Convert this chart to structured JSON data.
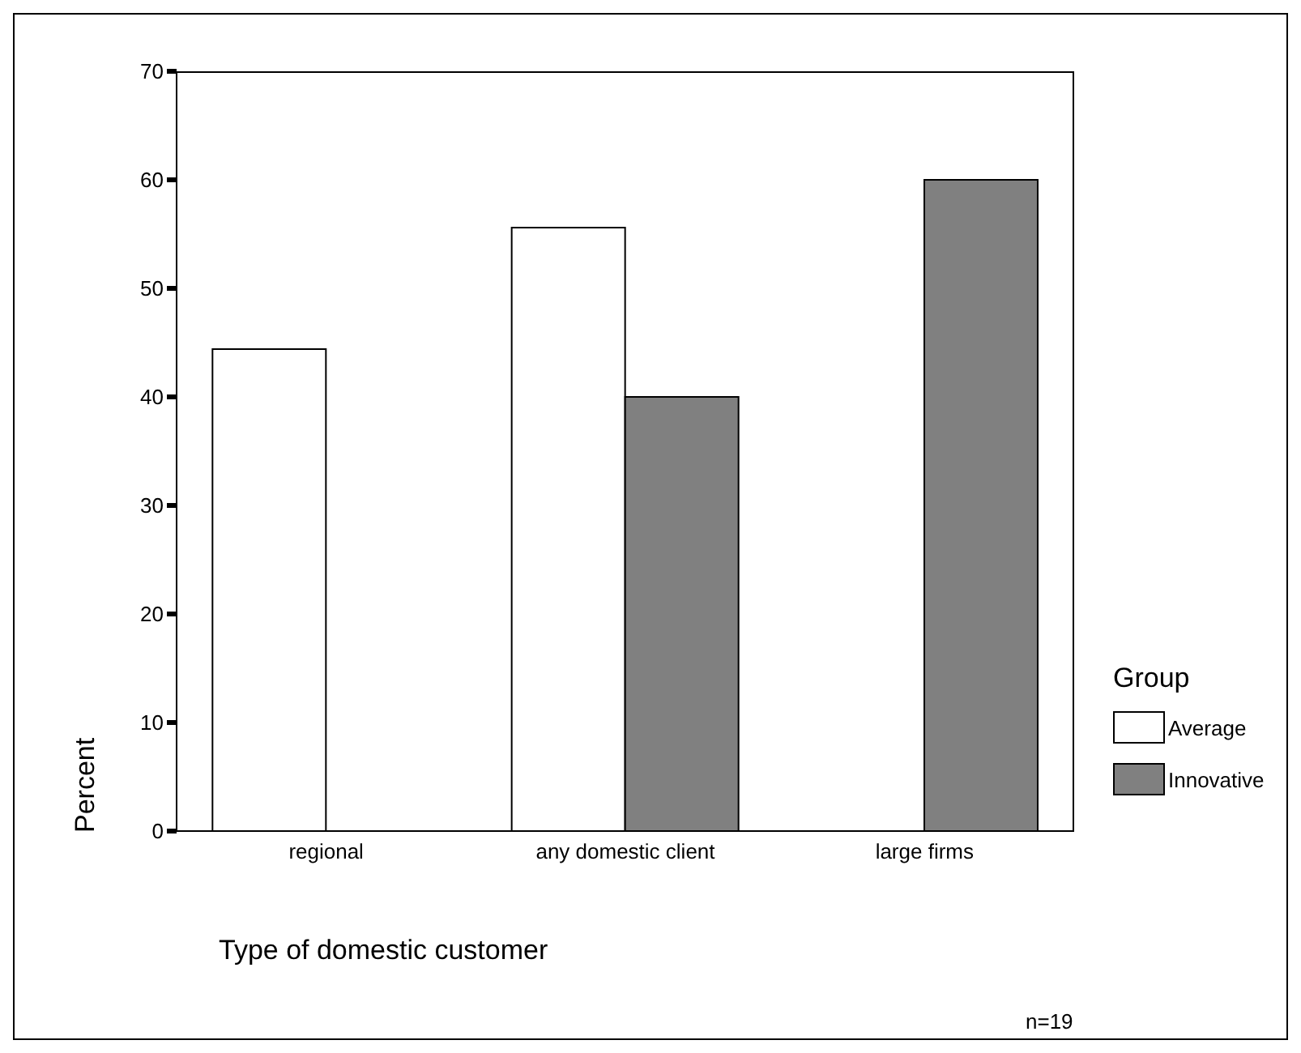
{
  "chart_data": {
    "type": "bar",
    "categories": [
      "regional",
      "any domestic client",
      "large firms"
    ],
    "series": [
      {
        "name": "Average",
        "color": "#ffffff",
        "values": [
          44.4,
          55.6,
          0
        ]
      },
      {
        "name": "Innovative",
        "color": "#808080",
        "values": [
          0,
          40,
          60
        ]
      }
    ],
    "xlabel": "Type of domestic customer",
    "ylabel": "Percent",
    "legend_title": "Group",
    "legend": "right",
    "ylim": [
      0,
      70
    ],
    "yticks": [
      0,
      10,
      20,
      30,
      40,
      50,
      60,
      70
    ],
    "grid": false,
    "annotations": [
      "n=19"
    ]
  }
}
